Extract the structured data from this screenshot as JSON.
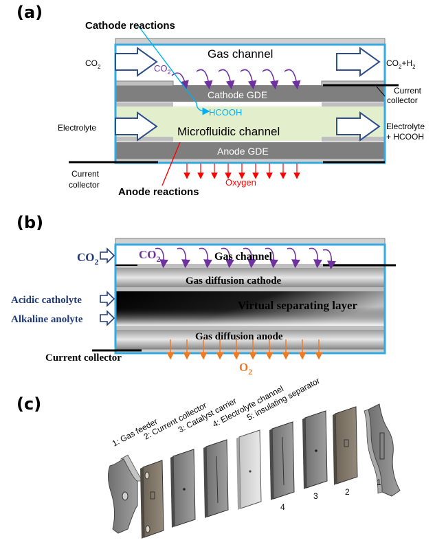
{
  "panels": {
    "a": {
      "label": "(a)",
      "cathode_reactions": "Cathode reactions",
      "gas_channel": "Gas channel",
      "co2_in_main": "CO",
      "co2_in_sub": "2",
      "co2_h2_out_a": "CO",
      "co2_h2_out_b": "2",
      "co2_h2_out_c": "+H",
      "co2_h2_out_d": "2",
      "co2_arrow_main": "CO",
      "co2_arrow_sub": "2",
      "cathode_gde": "Cathode GDE",
      "current_collector_right_1": "Current",
      "current_collector_right_2": "collector",
      "hcooh": "HCOOH",
      "electrolyte_in": "Electrolyte",
      "microfluidic_channel": "Microfluidic channel",
      "electrolyte_out_1": "Electrolyte",
      "electrolyte_out_2": "+ HCOOH",
      "anode_gde": "Anode GDE",
      "current_collector_left_1": "Current",
      "current_collector_left_2": "collector",
      "oxygen": "Oxygen",
      "anode_reactions": "Anode reactions"
    },
    "b": {
      "label": "(b)",
      "co2_in_main": "CO",
      "co2_in_sub": "2",
      "co2_arrow_main": "CO",
      "co2_arrow_sub": "2",
      "gas_channel": "Gas channel",
      "gas_diffusion_cathode": "Gas diffusion cathode",
      "acidic_catholyte": "Acidic catholyte",
      "virtual_separating_layer": "Virtual separating layer",
      "alkaline_anolyte": "Alkaline anolyte",
      "gas_diffusion_anode": "Gas diffusion anode",
      "current_collector": "Current collector",
      "o2_main": "O",
      "o2_sub": "2"
    },
    "c": {
      "label": "(c)",
      "parts": [
        "1: Gas feeder",
        "2: Current collector",
        "3: Catalyst carrier",
        "4: Electrolyte channel",
        "5: insulating separator"
      ],
      "numbers": [
        "4",
        "3",
        "2",
        "1"
      ]
    }
  },
  "colors": {
    "frame_blue": "#33a9e0",
    "arrow_navy": "#2e4e8c",
    "purple": "#7030a0",
    "cyan": "#00b0f0",
    "red": "#ff0000",
    "orange": "#f07820",
    "electrolyte_green": "#e3efcc",
    "gde_gray": "#808080",
    "serif_navy": "#1f3a7a"
  }
}
